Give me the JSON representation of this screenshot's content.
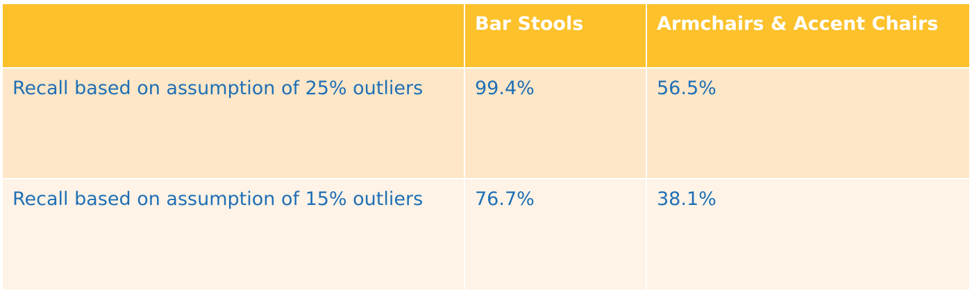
{
  "table": {
    "headers": [
      "",
      "Bar Stools",
      "Armchairs & Accent Chairs"
    ],
    "rows": [
      {
        "label": "Recall based on assumption of 25% outliers",
        "values": [
          "99.4%",
          "56.5%"
        ]
      },
      {
        "label": "Recall based on assumption of 15% outliers",
        "values": [
          "76.7%",
          "38.1%"
        ]
      }
    ]
  },
  "colors": {
    "header_bg": "#fcc12b",
    "header_text": "#ffffff",
    "row1_bg": "#fde7c8",
    "row2_bg": "#fef3e6",
    "body_text": "#1f6fb5"
  }
}
